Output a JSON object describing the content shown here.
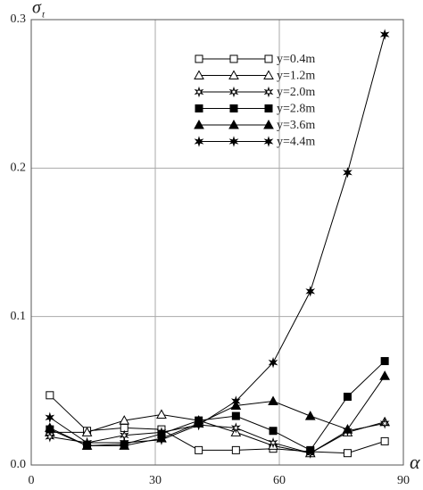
{
  "chart_data": {
    "type": "line",
    "xlabel": "α",
    "ylabel": "σ",
    "ylabel_subscript": "t",
    "x": [
      4.5,
      13.5,
      22.5,
      31.5,
      40.5,
      49.5,
      58.5,
      67.5,
      76.5,
      85.5
    ],
    "series": [
      {
        "name": "y=0.4m",
        "color": "#000000",
        "marker": "open-square",
        "values": [
          0.047,
          0.023,
          0.025,
          0.024,
          0.01,
          0.01,
          0.011,
          0.009,
          0.008,
          0.016
        ]
      },
      {
        "name": "y=1.2m",
        "color": "#000000",
        "marker": "open-triangle",
        "values": [
          0.022,
          0.022,
          0.03,
          0.034,
          0.03,
          0.022,
          0.013,
          0.008,
          0.022,
          0.029
        ]
      },
      {
        "name": "y=2.0m",
        "color": "#000000",
        "marker": "open-star",
        "values": [
          0.019,
          0.015,
          0.02,
          0.022,
          0.027,
          0.025,
          0.015,
          0.008,
          0.023,
          0.028
        ]
      },
      {
        "name": "y=2.8m",
        "color": "#000000",
        "marker": "filled-square",
        "values": [
          0.024,
          0.013,
          0.014,
          0.021,
          0.03,
          0.033,
          0.023,
          0.01,
          0.046,
          0.07
        ]
      },
      {
        "name": "y=3.6m",
        "color": "#000000",
        "marker": "filled-triangle",
        "values": [
          0.025,
          0.013,
          0.013,
          0.018,
          0.028,
          0.04,
          0.043,
          0.033,
          0.024,
          0.06
        ]
      },
      {
        "name": "y=4.4m",
        "color": "#000000",
        "marker": "asterisk",
        "values": [
          0.032,
          0.015,
          0.015,
          0.017,
          0.027,
          0.043,
          0.069,
          0.117,
          0.197,
          0.29
        ]
      }
    ],
    "xlim": [
      0,
      90
    ],
    "xticks": [
      0,
      30,
      60,
      90
    ],
    "ylim": [
      0,
      0.3
    ],
    "yticks": [
      {
        "value": 0,
        "label": "0.0"
      },
      0.1,
      0.2,
      0.3
    ],
    "grid": true,
    "legend": "upper-right"
  }
}
